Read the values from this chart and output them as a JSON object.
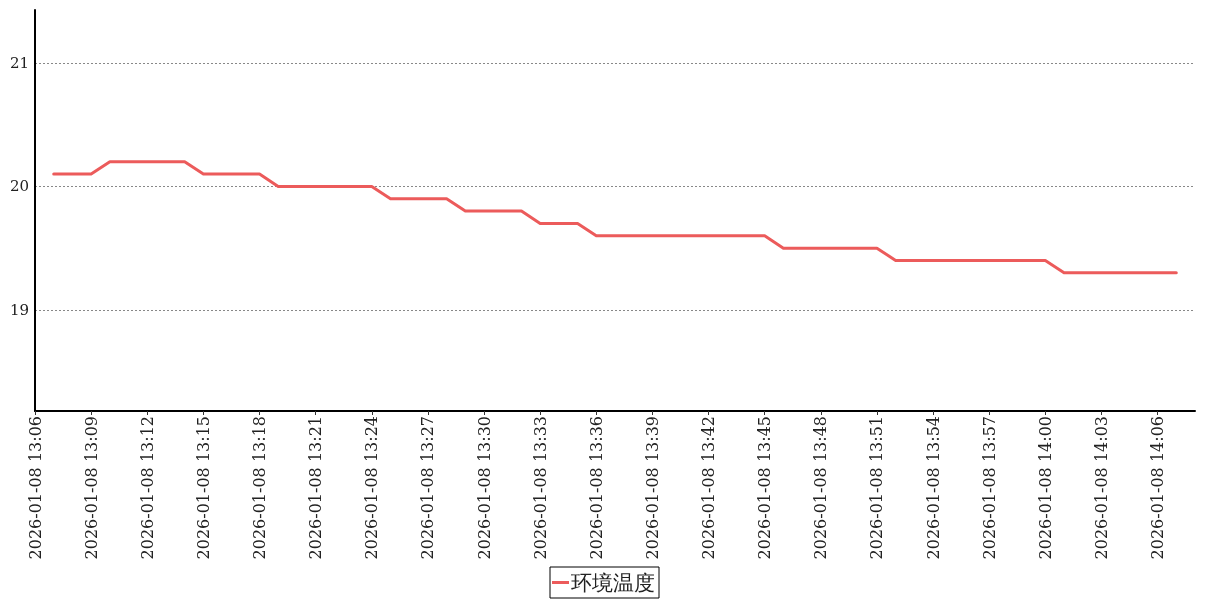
{
  "chart_data": {
    "type": "line",
    "x": [
      "2026-01-08T13:07",
      "2026-01-08T13:09",
      "2026-01-08T13:10",
      "2026-01-08T13:14",
      "2026-01-08T13:15",
      "2026-01-08T13:18",
      "2026-01-08T13:19",
      "2026-01-08T13:24",
      "2026-01-08T13:25",
      "2026-01-08T13:28",
      "2026-01-08T13:29",
      "2026-01-08T13:32",
      "2026-01-08T13:33",
      "2026-01-08T13:35",
      "2026-01-08T13:36",
      "2026-01-08T13:45",
      "2026-01-08T13:46",
      "2026-01-08T13:51",
      "2026-01-08T13:52",
      "2026-01-08T14:00",
      "2026-01-08T14:01",
      "2026-01-08T14:07"
    ],
    "series": [
      {
        "name": "环境温度",
        "color": "#ec5b5b",
        "values": [
          20.1,
          20.1,
          20.2,
          20.2,
          20.1,
          20.1,
          20.0,
          20.0,
          19.9,
          19.9,
          19.8,
          19.8,
          19.7,
          19.7,
          19.6,
          19.6,
          19.5,
          19.5,
          19.4,
          19.4,
          19.3,
          19.3
        ]
      }
    ],
    "xlim": [
      "2026-01-08T13:06",
      "2026-01-08T14:08"
    ],
    "xticks": [
      {
        "value": "2026-01-08T13:06",
        "label": "2026-01-08 13:06"
      },
      {
        "value": "2026-01-08T13:09",
        "label": "2026-01-08 13:09"
      },
      {
        "value": "2026-01-08T13:12",
        "label": "2026-01-08 13:12"
      },
      {
        "value": "2026-01-08T13:15",
        "label": "2026-01-08 13:15"
      },
      {
        "value": "2026-01-08T13:18",
        "label": "2026-01-08 13:18"
      },
      {
        "value": "2026-01-08T13:21",
        "label": "2026-01-08 13:21"
      },
      {
        "value": "2026-01-08T13:24",
        "label": "2026-01-08 13:24"
      },
      {
        "value": "2026-01-08T13:27",
        "label": "2026-01-08 13:27"
      },
      {
        "value": "2026-01-08T13:30",
        "label": "2026-01-08 13:30"
      },
      {
        "value": "2026-01-08T13:33",
        "label": "2026-01-08 13:33"
      },
      {
        "value": "2026-01-08T13:36",
        "label": "2026-01-08 13:36"
      },
      {
        "value": "2026-01-08T13:39",
        "label": "2026-01-08 13:39"
      },
      {
        "value": "2026-01-08T13:42",
        "label": "2026-01-08 13:42"
      },
      {
        "value": "2026-01-08T13:45",
        "label": "2026-01-08 13:45"
      },
      {
        "value": "2026-01-08T13:48",
        "label": "2026-01-08 13:48"
      },
      {
        "value": "2026-01-08T13:51",
        "label": "2026-01-08 13:51"
      },
      {
        "value": "2026-01-08T13:54",
        "label": "2026-01-08 13:54"
      },
      {
        "value": "2026-01-08T13:57",
        "label": "2026-01-08 13:57"
      },
      {
        "value": "2026-01-08T14:00",
        "label": "2026-01-08 14:00"
      },
      {
        "value": "2026-01-08T14:03",
        "label": "2026-01-08 14:03"
      },
      {
        "value": "2026-01-08T14:06",
        "label": "2026-01-08 14:06"
      }
    ],
    "ylim": [
      18.18,
      21.43
    ],
    "yticks": [
      19,
      20,
      21
    ],
    "grid": "y",
    "legend": "bottom",
    "marker": "none",
    "line_style": "solid"
  }
}
